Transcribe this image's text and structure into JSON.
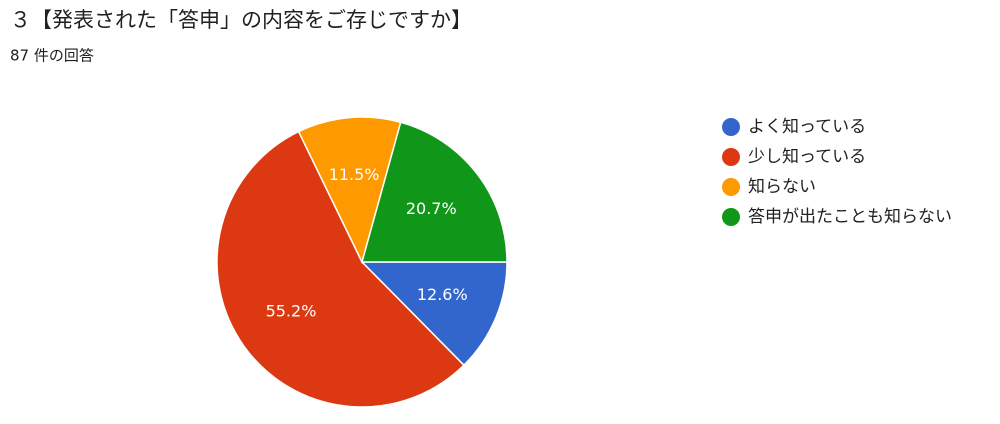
{
  "chart_data": {
    "type": "pie",
    "title": "３【発表された「答申」の内容をご存じですか】",
    "subtitle": "87 件の回答",
    "categories": [
      "よく知っている",
      "少し知っている",
      "知らない",
      "答申が出たことも知らない"
    ],
    "values": [
      12.6,
      55.2,
      11.5,
      20.7
    ],
    "value_labels": [
      "12.6%",
      "55.2%",
      "11.5%",
      "20.7%"
    ],
    "colors": [
      "#3366cc",
      "#dc3912",
      "#ff9900",
      "#109618"
    ],
    "legend": "right"
  }
}
